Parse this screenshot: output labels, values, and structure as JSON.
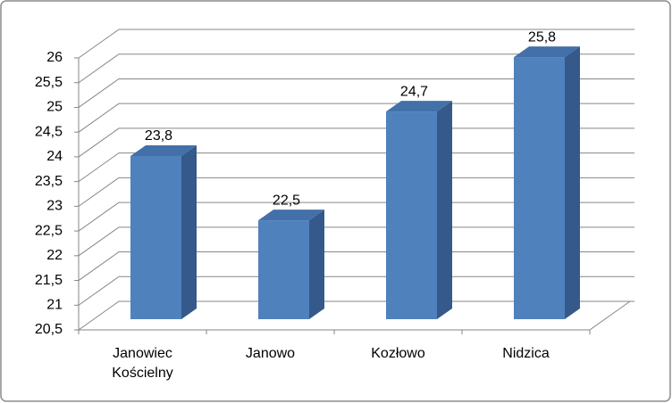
{
  "chart_data": {
    "type": "bar3d",
    "categories": [
      "Janowiec Kościelny",
      "Janowo",
      "Kozłowo",
      "Nidzica"
    ],
    "values": [
      23.8,
      22.5,
      24.7,
      25.8
    ],
    "value_labels": [
      "23,8",
      "22,5",
      "24,7",
      "25,8"
    ],
    "color": "#4f81bd",
    "ylim": [
      20.5,
      26
    ],
    "yticks": [
      {
        "value": 20.5,
        "label": "20,5"
      },
      21,
      {
        "value": 21.5,
        "label": "21,5"
      },
      22,
      {
        "value": 22.5,
        "label": "22,5"
      },
      23,
      {
        "value": 23.5,
        "label": "23,5"
      },
      24,
      {
        "value": 24.5,
        "label": "24,5"
      },
      25,
      {
        "value": 25.5,
        "label": "25,5"
      },
      26
    ],
    "grid": true
  }
}
